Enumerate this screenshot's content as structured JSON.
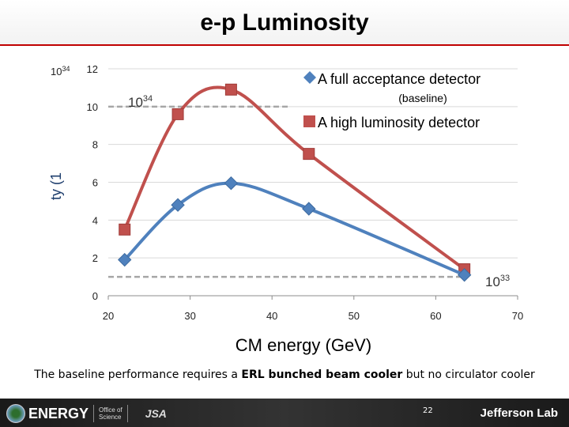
{
  "slide": {
    "title": "e-p Luminosity",
    "caption_prefix": "The baseline performance requires a ",
    "caption_bold": "ERL bunched beam cooler",
    "caption_suffix": " but no circulator cooler",
    "page_number": "22"
  },
  "footer": {
    "doe_label": "ENERGY",
    "doe_seal": "U.S. DEPARTMENT OF ENERGY",
    "office_line1": "Office of",
    "office_line2": "Science",
    "jsa_label": "JSA",
    "jlab_label": "Jefferson Lab"
  },
  "colors": {
    "series_full": "#4f81bd",
    "series_high": "#c0504d",
    "grid": "#d9d9d9",
    "reference": "#a6a6a6"
  },
  "chart_data": {
    "type": "line",
    "title": "",
    "xlabel": "CM energy (GeV)",
    "ylabel": "ty (1",
    "y_unit_label": "10",
    "y_unit_exp": "34",
    "xlim": [
      20,
      70
    ],
    "ylim": [
      0,
      12
    ],
    "x_ticks": [
      "20",
      "30",
      "40",
      "50",
      "60",
      "70"
    ],
    "y_ticks": [
      "0",
      "2",
      "4",
      "6",
      "8",
      "10",
      "12"
    ],
    "series": [
      {
        "name": "A full acceptance detector",
        "subtitle": "(baseline)",
        "marker": "diamond",
        "color": "#4f81bd",
        "x": [
          22,
          28.5,
          35,
          44.5,
          63.5
        ],
        "y": [
          1.9,
          4.8,
          5.95,
          4.6,
          1.1
        ]
      },
      {
        "name": "A high luminosity detector",
        "marker": "square",
        "color": "#c0504d",
        "x": [
          22,
          28.5,
          35,
          44.5,
          63.5
        ],
        "y": [
          3.5,
          9.6,
          10.9,
          7.5,
          1.4
        ]
      }
    ],
    "reference_lines": [
      {
        "label_base": "10",
        "label_exp": "34",
        "y": 10,
        "x_from": 20,
        "x_to": 42
      },
      {
        "label_base": "10",
        "label_exp": "33",
        "y": 1,
        "x_from": 20,
        "x_to": 63.5
      }
    ]
  }
}
